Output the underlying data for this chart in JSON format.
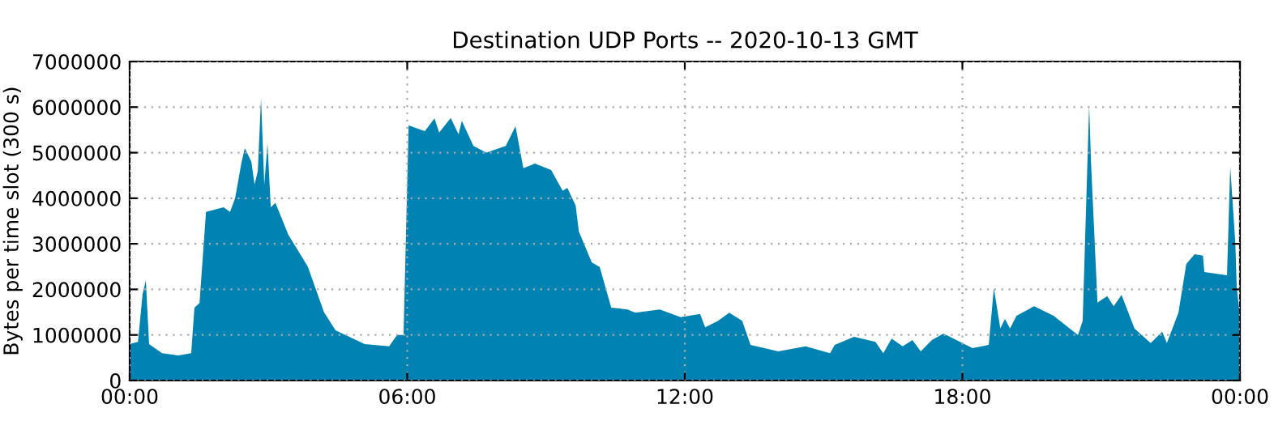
{
  "chart_data": {
    "type": "area",
    "title": "Destination UDP Ports -- 2020-10-13 GMT",
    "ylabel": "Bytes per time slot (300 s)",
    "x": [
      0,
      0.18,
      0.28,
      0.35,
      0.42,
      0.7,
      1.05,
      1.33,
      1.4,
      1.51,
      1.65,
      2.03,
      2.17,
      2.28,
      2.42,
      2.49,
      2.63,
      2.7,
      2.77,
      2.84,
      2.91,
      2.98,
      3.05,
      3.15,
      3.43,
      3.85,
      4.2,
      4.45,
      5.08,
      5.61,
      5.78,
      5.92,
      6.03,
      6.38,
      6.59,
      6.69,
      6.94,
      7.11,
      7.18,
      7.43,
      7.71,
      8.13,
      8.34,
      8.51,
      8.76,
      9.11,
      9.36,
      9.46,
      9.64,
      9.71,
      9.99,
      10.16,
      10.41,
      10.76,
      10.93,
      11.46,
      11.91,
      12.33,
      12.44,
      12.72,
      12.96,
      13.24,
      13.42,
      14.02,
      14.61,
      15.14,
      15.24,
      15.66,
      16.12,
      16.29,
      16.47,
      16.71,
      16.92,
      17.1,
      17.34,
      17.59,
      17.87,
      18.22,
      18.57,
      18.68,
      18.82,
      18.92,
      19.03,
      19.17,
      19.55,
      19.97,
      20.32,
      20.5,
      20.6,
      20.74,
      20.78,
      20.92,
      21.13,
      21.27,
      21.44,
      21.72,
      22.07,
      22.32,
      22.42,
      22.67,
      22.84,
      23.02,
      23.2,
      23.23,
      23.72,
      23.79,
      23.9,
      23.93,
      24
    ],
    "series": [
      {
        "color": "#0083b3",
        "values": [
          800000,
          850000,
          1900000,
          2200000,
          800000,
          600000,
          550000,
          600000,
          1600000,
          1700000,
          3700000,
          3800000,
          3700000,
          4000000,
          4800000,
          5100000,
          4800000,
          4300000,
          4600000,
          6200000,
          4300000,
          5200000,
          3800000,
          3900000,
          3200000,
          2500000,
          1500000,
          1100000,
          800000,
          750000,
          1000000,
          1000000,
          5600000,
          5470000,
          5750000,
          5440000,
          5760000,
          5400000,
          5700000,
          5150000,
          5000000,
          5150000,
          5580000,
          4660000,
          4760000,
          4620000,
          4160000,
          4230000,
          3840000,
          3270000,
          2590000,
          2490000,
          1600000,
          1560000,
          1490000,
          1560000,
          1390000,
          1460000,
          1170000,
          1310000,
          1490000,
          1310000,
          780000,
          640000,
          750000,
          600000,
          780000,
          960000,
          850000,
          600000,
          920000,
          750000,
          890000,
          640000,
          890000,
          1030000,
          890000,
          710000,
          780000,
          2030000,
          1140000,
          1350000,
          1140000,
          1420000,
          1630000,
          1420000,
          1140000,
          1000000,
          1310000,
          6040000,
          4800000,
          1710000,
          1850000,
          1630000,
          1880000,
          1140000,
          820000,
          1070000,
          820000,
          1490000,
          2560000,
          2770000,
          2740000,
          2380000,
          2310000,
          4690000,
          3020000,
          2060000,
          1400000
        ]
      }
    ],
    "xlim": [
      0,
      24
    ],
    "xticks": [
      {
        "value": 0,
        "label": "00:00"
      },
      {
        "value": 6,
        "label": "06:00"
      },
      {
        "value": 12,
        "label": "12:00"
      },
      {
        "value": 18,
        "label": "18:00"
      },
      {
        "value": 24,
        "label": "00:00"
      }
    ],
    "ylim": [
      0,
      7000000
    ],
    "yticks": [
      0,
      1000000,
      2000000,
      3000000,
      4000000,
      5000000,
      6000000,
      7000000
    ],
    "grid": true,
    "legend": false
  }
}
